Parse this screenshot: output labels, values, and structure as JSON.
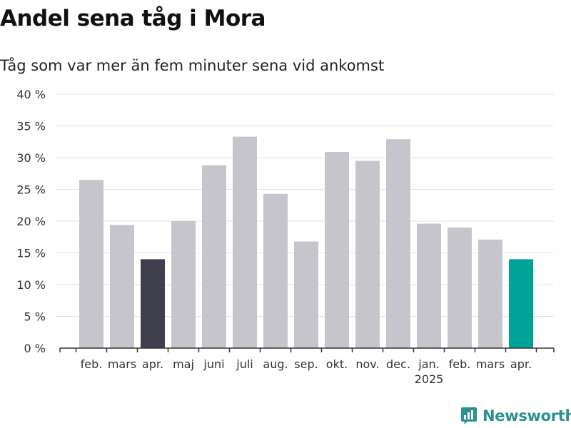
{
  "header": {
    "title": "Andel sena tåg i Mora",
    "subtitle": "Tåg som var mer än fem minuter sena vid ankomst"
  },
  "brand": {
    "name": "Newsworthy"
  },
  "colors": {
    "bar_default": "#c6c5cc",
    "bar_highlight_previous": "#403f4d",
    "bar_highlight_current": "#00a398",
    "grid": "#e3e3e3",
    "axis": "#333333",
    "brand": "#2b8f93"
  },
  "chart_data": {
    "type": "bar",
    "categories": [
      "feb.",
      "mars",
      "apr.",
      "maj",
      "juni",
      "juli",
      "aug.",
      "sep.",
      "okt.",
      "nov.",
      "dec.",
      "jan.",
      "feb.",
      "mars",
      "apr."
    ],
    "values": [
      26.5,
      19.4,
      14.0,
      20.0,
      28.8,
      33.3,
      24.3,
      16.8,
      30.9,
      29.5,
      32.9,
      19.6,
      19.0,
      17.1,
      14.0
    ],
    "bar_colors": [
      "default",
      "default",
      "highlight_previous",
      "default",
      "default",
      "default",
      "default",
      "default",
      "default",
      "default",
      "default",
      "default",
      "default",
      "default",
      "highlight_current"
    ],
    "year_labels": [
      {
        "index": 11,
        "label": "2025"
      }
    ],
    "ylim": [
      0,
      40
    ],
    "yticks": [
      0,
      5,
      10,
      15,
      20,
      25,
      30,
      35,
      40
    ],
    "ytick_suffix": " %",
    "xlabel": "",
    "ylabel": "",
    "grid": true,
    "legend": "none"
  }
}
